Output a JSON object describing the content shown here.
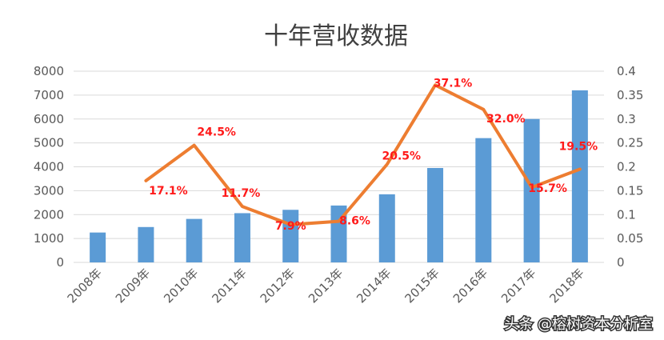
{
  "chart_data": {
    "type": "bar+line",
    "title": "十年营收数据",
    "categories": [
      "2008年",
      "2009年",
      "2010年",
      "2011年",
      "2012年",
      "2013年",
      "2014年",
      "2015年",
      "2016年",
      "2017年",
      "2018年"
    ],
    "series": [
      {
        "kind": "bar",
        "axis": "left",
        "values": [
          1250,
          1480,
          1820,
          2060,
          2200,
          2380,
          2850,
          3950,
          5200,
          6000,
          7200
        ]
      },
      {
        "kind": "line",
        "axis": "right",
        "values": [
          null,
          0.171,
          0.245,
          0.117,
          0.079,
          0.086,
          0.205,
          0.371,
          0.32,
          0.157,
          0.195
        ],
        "labels": [
          "",
          "17.1%",
          "24.5%",
          "11.7%",
          "7.9%",
          "8.6%",
          "20.5%",
          "37.1%",
          "32.0%",
          "15.7%",
          "19.5%"
        ]
      }
    ],
    "y_left": {
      "ylim": [
        0,
        8000
      ],
      "ticks": [
        0,
        1000,
        2000,
        3000,
        4000,
        5000,
        6000,
        7000,
        8000
      ]
    },
    "y_right": {
      "ylim": [
        0,
        0.4
      ],
      "ticks": [
        0,
        0.05,
        0.1,
        0.15,
        0.2,
        0.25,
        0.3,
        0.35,
        0.4
      ],
      "tick_labels": [
        "0",
        "0.05",
        "0.1",
        "0.15",
        "0.2",
        "0.25",
        "0.3",
        "0.35",
        "0.4"
      ]
    },
    "grid": true,
    "legend": "none",
    "colors": {
      "bar": "#5b9bd5",
      "line": "#ed7d31",
      "data_label": "#ff1a1a",
      "grid": "#d9d9d9",
      "text": "#595959"
    }
  },
  "watermark": "头条 @榕树资本分析室"
}
